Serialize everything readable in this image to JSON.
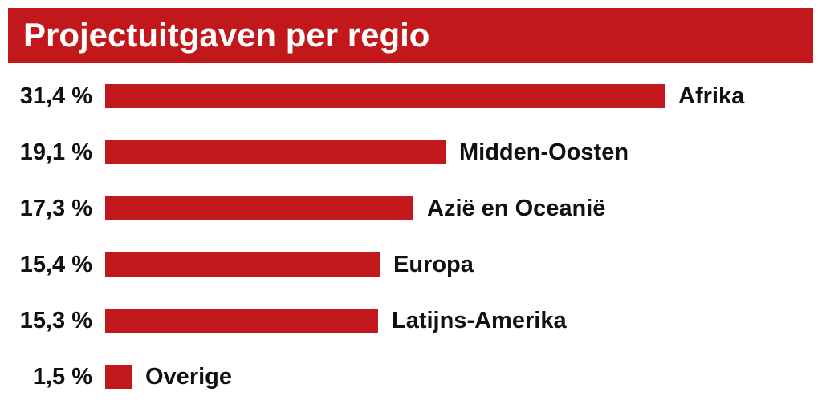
{
  "header": {
    "title": "Projectuitgaven per regio"
  },
  "colors": {
    "accent": "#c2181c",
    "title_text": "#ffffff",
    "label_text": "#111111",
    "background": "#ffffff"
  },
  "chart_data": {
    "type": "bar",
    "orientation": "horizontal",
    "title": "Projectuitgaven per regio",
    "categories": [
      "Afrika",
      "Midden-Oosten",
      "Azië en Oceanië",
      "Europa",
      "Latijns-Amerika",
      "Overige"
    ],
    "values": [
      31.4,
      19.1,
      17.3,
      15.4,
      15.3,
      1.5
    ],
    "value_labels": [
      "31,4 %",
      "19,1 %",
      "17,3 %",
      "15,4 %",
      "15,3 %",
      "1,5 %"
    ],
    "unit": "%",
    "xlim": [
      0,
      31.4
    ],
    "bar_color": "#c2181c",
    "grid": false,
    "legend": "none",
    "value_label_position": "left-of-bar",
    "category_label_position": "right-of-bar"
  }
}
